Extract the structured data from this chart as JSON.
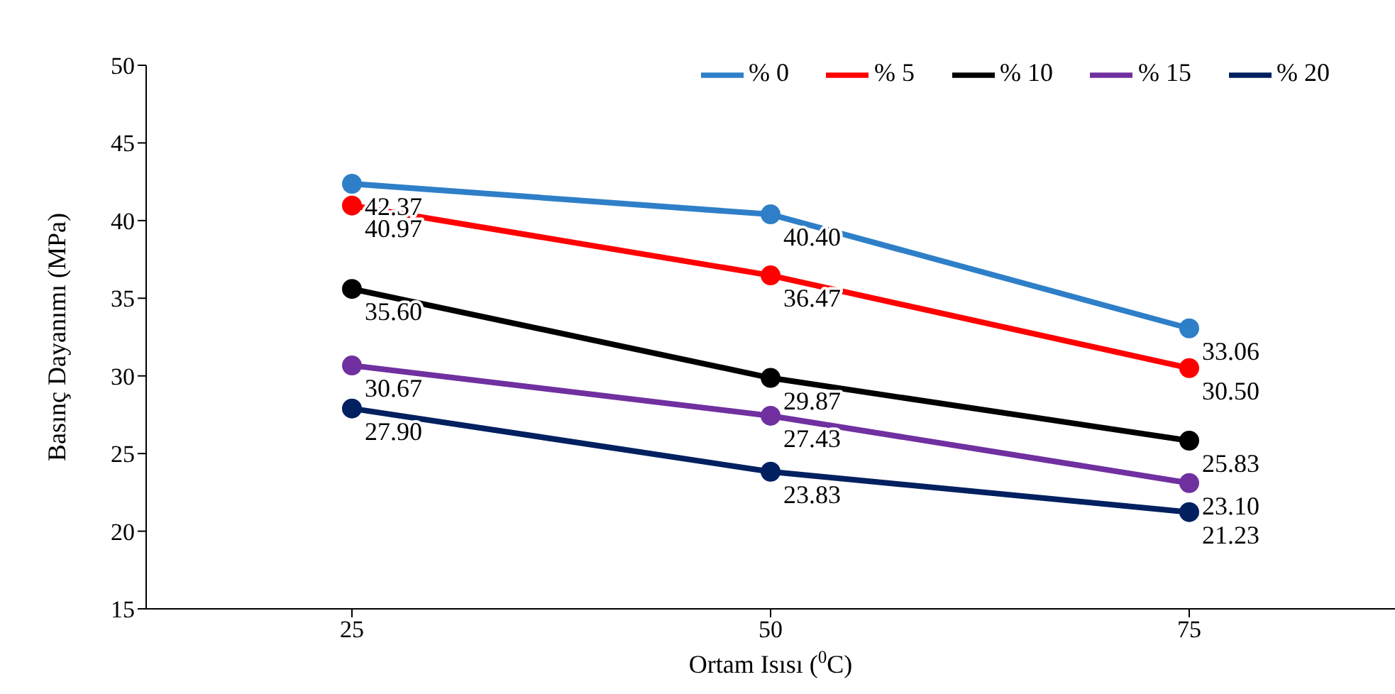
{
  "chart_data": {
    "type": "line",
    "xlabel": "Ortam Isısı ($^{0}$C)",
    "ylabel": "Basınç Dayanımı (MPa)",
    "categories": [
      "25",
      "50",
      "75"
    ],
    "series": [
      {
        "name": "% 0",
        "color": "#2e7fc8",
        "values": [
          42.37,
          40.4,
          33.06
        ],
        "value_labels": [
          "42.37",
          "40.40",
          "33.06"
        ]
      },
      {
        "name": "% 5",
        "color": "#ff0000",
        "values": [
          40.97,
          36.47,
          30.5
        ],
        "value_labels": [
          "40.97",
          "36.47",
          "30.50"
        ]
      },
      {
        "name": "% 10",
        "color": "#000000",
        "values": [
          35.6,
          29.87,
          25.83
        ],
        "value_labels": [
          "35.60",
          "29.87",
          "25.83"
        ]
      },
      {
        "name": "% 15",
        "color": "#7030a0",
        "values": [
          30.67,
          27.43,
          23.1
        ],
        "value_labels": [
          "30.67",
          "27.43",
          "23.10"
        ]
      },
      {
        "name": "% 20",
        "color": "#002060",
        "values": [
          27.9,
          23.83,
          21.23
        ],
        "value_labels": [
          "27.90",
          "23.83",
          "21.23"
        ]
      }
    ],
    "ylim": [
      15,
      50
    ],
    "yticks": [
      15,
      20,
      25,
      30,
      35,
      40,
      45,
      50
    ],
    "grid": false,
    "legend": "top right",
    "marker": "circle",
    "line_style": "solid"
  }
}
